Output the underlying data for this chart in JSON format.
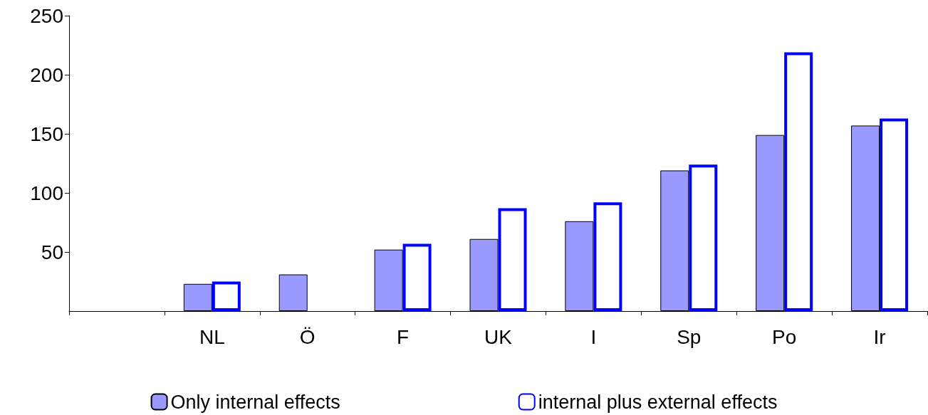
{
  "chart_data": {
    "type": "bar",
    "categories": [
      null,
      "NL",
      "Ö",
      "F",
      "UK",
      "I",
      "Sp",
      "Po",
      "Ir"
    ],
    "series": [
      {
        "name": "Only internal effects",
        "color": "#9999ff",
        "values": [
          null,
          23,
          31,
          52,
          61,
          76,
          119,
          149,
          157
        ]
      },
      {
        "name": "internal plus external effects",
        "color": "#0000ff",
        "values": [
          null,
          25,
          null,
          57,
          87,
          92,
          124,
          219,
          163
        ]
      }
    ],
    "ylim": [
      0,
      250
    ],
    "yticks": [
      50,
      100,
      150,
      200,
      250
    ],
    "grid": false,
    "legend": "bottom"
  }
}
